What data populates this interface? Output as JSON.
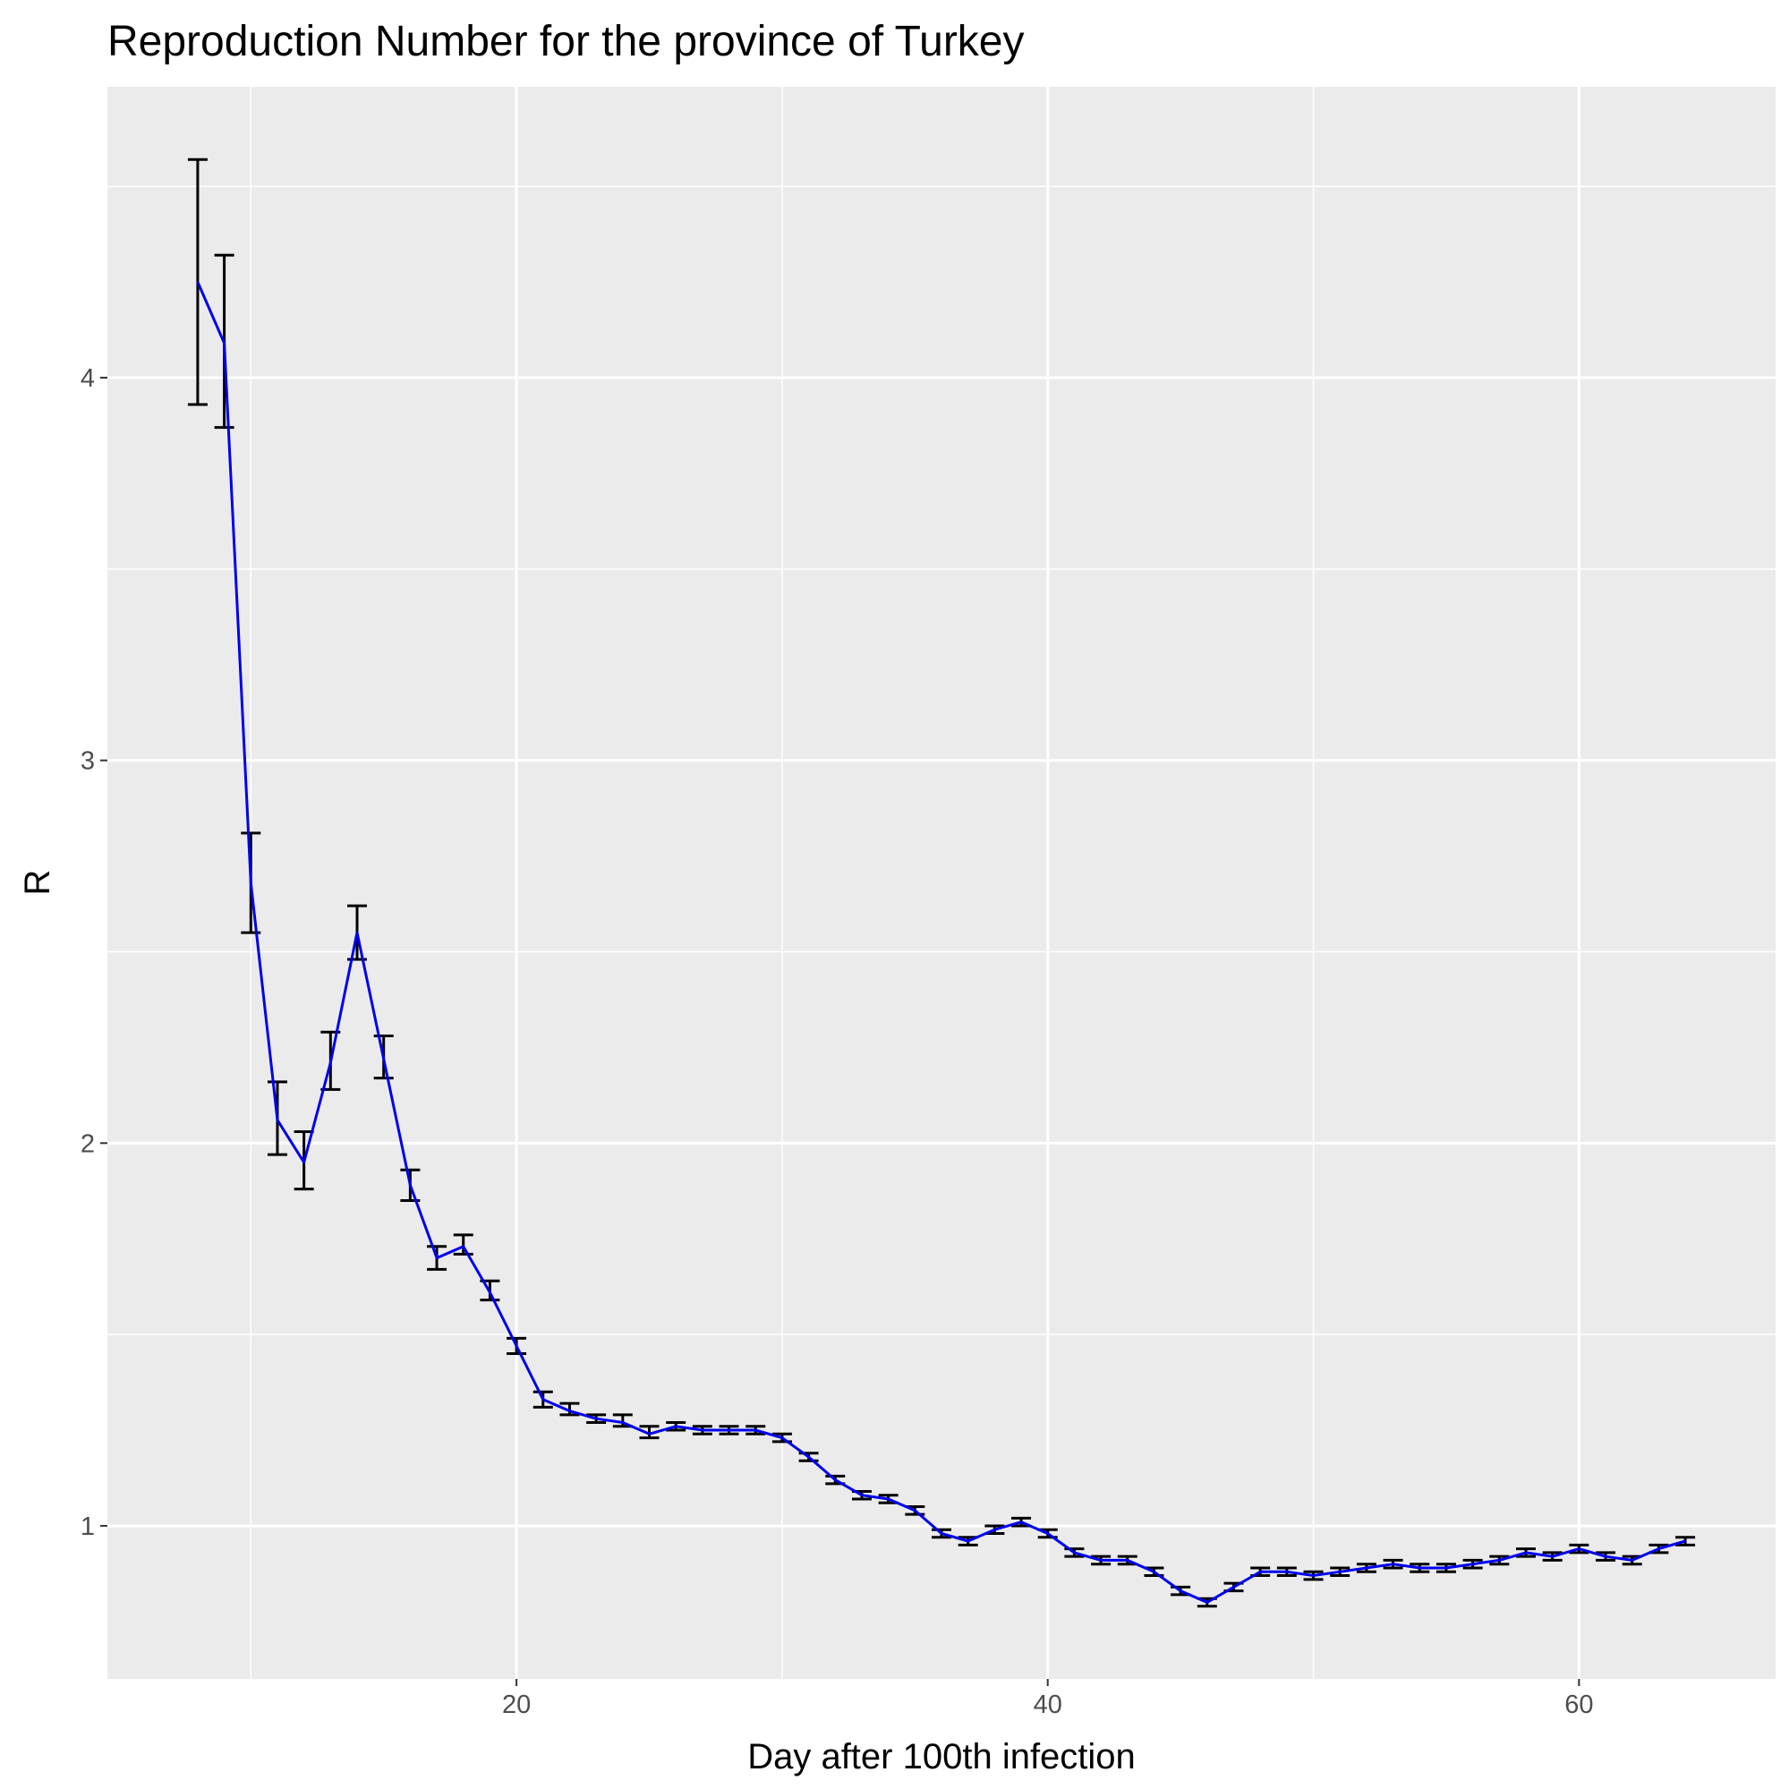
{
  "chart_data": {
    "type": "line",
    "title": "Reproduction Number for the province of  Turkey",
    "xlabel": "Day after 100th infection",
    "ylabel": "R",
    "xlim": [
      4.6,
      67.4
    ],
    "ylim": [
      0.6,
      4.76
    ],
    "x_ticks": [
      20,
      40,
      60
    ],
    "y_ticks": [
      1,
      2,
      3,
      4
    ],
    "x_tick_labels": [
      "20",
      "40",
      "60"
    ],
    "y_tick_labels": [
      "1",
      "2",
      "3",
      "4"
    ],
    "grid": true,
    "background": "#ebebeb",
    "grid_color": "#ffffff",
    "line_color": "#0000ee",
    "errorbar_color": "#000000",
    "series": [
      {
        "x": [
          8,
          9,
          10,
          11,
          12,
          13,
          14,
          15,
          16,
          17,
          18,
          19,
          20,
          21,
          22,
          23,
          24,
          25,
          26,
          27,
          28,
          29,
          30,
          31,
          32,
          33,
          34,
          35,
          36,
          37,
          38,
          39,
          40,
          41,
          42,
          43,
          44,
          45,
          46,
          47,
          48,
          49,
          50,
          51,
          52,
          53,
          54,
          55,
          56,
          57,
          58,
          59,
          60,
          61,
          62,
          63,
          64
        ],
        "y": [
          4.25,
          4.09,
          2.68,
          2.06,
          1.95,
          2.21,
          2.55,
          2.22,
          1.89,
          1.7,
          1.73,
          1.61,
          1.47,
          1.33,
          1.3,
          1.28,
          1.27,
          1.24,
          1.26,
          1.25,
          1.25,
          1.25,
          1.23,
          1.18,
          1.12,
          1.08,
          1.07,
          1.04,
          0.98,
          0.96,
          0.99,
          1.01,
          0.98,
          0.93,
          0.91,
          0.91,
          0.88,
          0.83,
          0.8,
          0.84,
          0.88,
          0.88,
          0.87,
          0.88,
          0.89,
          0.9,
          0.89,
          0.89,
          0.9,
          0.91,
          0.93,
          0.92,
          0.94,
          0.92,
          0.91,
          0.94,
          0.96
        ],
        "lower": [
          3.93,
          3.87,
          2.55,
          1.97,
          1.88,
          2.14,
          2.48,
          2.17,
          1.85,
          1.67,
          1.71,
          1.59,
          1.45,
          1.31,
          1.29,
          1.27,
          1.26,
          1.23,
          1.25,
          1.24,
          1.24,
          1.24,
          1.22,
          1.17,
          1.11,
          1.07,
          1.06,
          1.03,
          0.97,
          0.95,
          0.98,
          1.0,
          0.97,
          0.92,
          0.9,
          0.9,
          0.87,
          0.82,
          0.79,
          0.83,
          0.87,
          0.87,
          0.86,
          0.87,
          0.88,
          0.89,
          0.88,
          0.88,
          0.89,
          0.9,
          0.92,
          0.91,
          0.93,
          0.91,
          0.9,
          0.93,
          0.95
        ],
        "upper": [
          4.57,
          4.32,
          2.81,
          2.16,
          2.03,
          2.29,
          2.62,
          2.28,
          1.93,
          1.73,
          1.76,
          1.64,
          1.49,
          1.35,
          1.32,
          1.29,
          1.29,
          1.26,
          1.27,
          1.26,
          1.26,
          1.26,
          1.24,
          1.19,
          1.13,
          1.09,
          1.08,
          1.05,
          0.99,
          0.97,
          1.0,
          1.02,
          0.99,
          0.94,
          0.92,
          0.92,
          0.89,
          0.84,
          0.81,
          0.85,
          0.89,
          0.89,
          0.88,
          0.89,
          0.9,
          0.91,
          0.9,
          0.9,
          0.91,
          0.92,
          0.94,
          0.93,
          0.95,
          0.93,
          0.92,
          0.95,
          0.97
        ]
      }
    ]
  }
}
